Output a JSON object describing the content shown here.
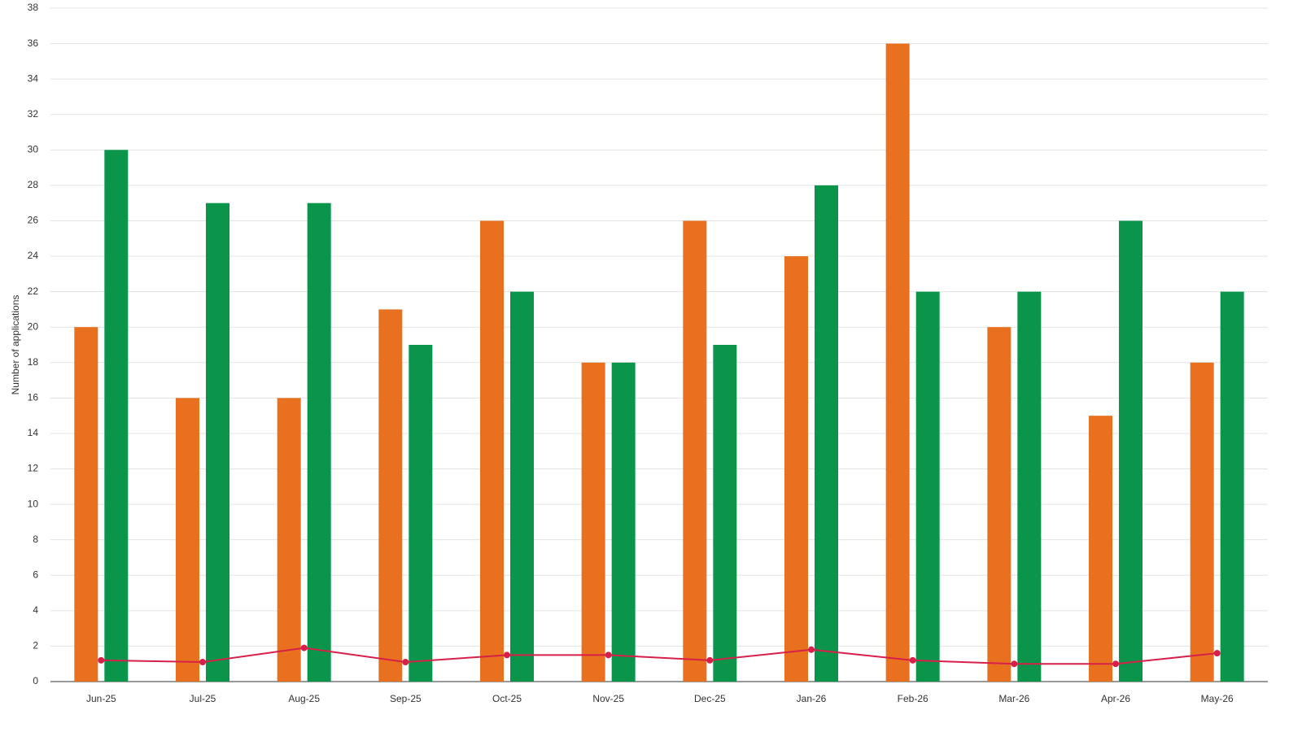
{
  "chart_data": {
    "type": "bar",
    "y_label": "Number of applications",
    "categories": [
      "Jun-25",
      "Jul-25",
      "Aug-25",
      "Sep-25",
      "Oct-25",
      "Nov-25",
      "Dec-25",
      "Jan-26",
      "Feb-26",
      "Mar-26",
      "Apr-26",
      "May-26"
    ],
    "series": [
      {
        "type": "bar",
        "color": "#e8701e",
        "values": [
          20,
          16,
          16,
          21,
          26,
          18,
          26,
          24,
          36,
          20,
          15,
          18
        ]
      },
      {
        "type": "bar",
        "color": "#0a954a",
        "values": [
          30,
          27,
          27,
          19,
          22,
          18,
          19,
          28,
          22,
          22,
          26,
          22
        ]
      },
      {
        "type": "line",
        "color": "#d6204a",
        "values": [
          1.2,
          1.1,
          1.9,
          1.1,
          1.5,
          1.5,
          1.2,
          1.8,
          1.2,
          1.0,
          1.0,
          1.6
        ]
      }
    ],
    "ylim": [
      0,
      38
    ],
    "yticks": [
      0,
      2,
      4,
      6,
      8,
      10,
      12,
      14,
      16,
      18,
      20,
      22,
      24,
      26,
      28,
      30,
      32,
      34,
      36,
      38
    ],
    "grid": true
  }
}
